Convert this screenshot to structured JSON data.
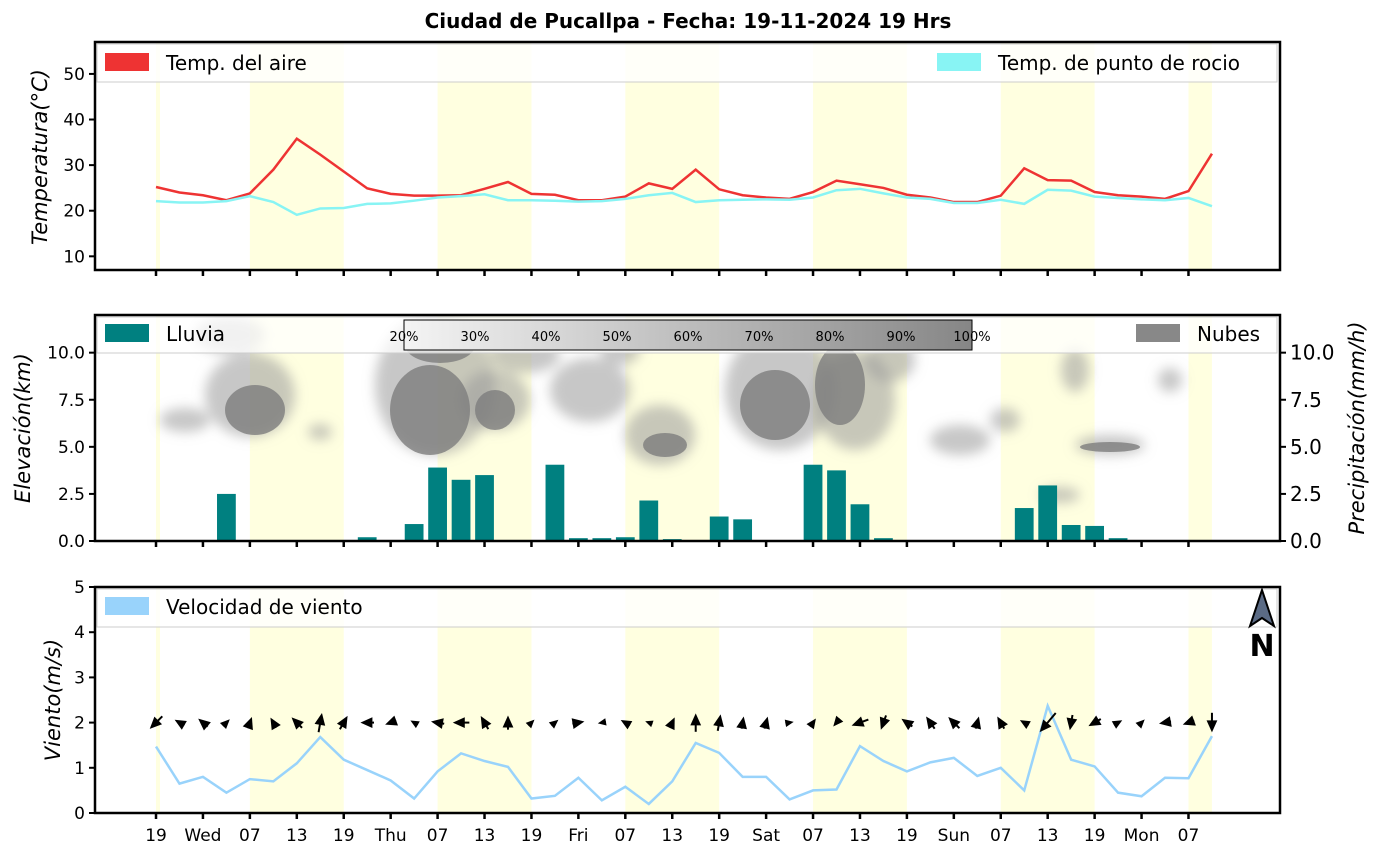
{
  "title": "Ciudad de Pucallpa   -   Fecha: 19-11-2024 19 Hrs",
  "colors": {
    "air_temp": "#ee3333",
    "dew_point": "#88f4f4",
    "rain": "#008080",
    "clouds": "#888888",
    "wind": "#99d3fb",
    "day_band": "#ffffe0"
  },
  "x_axis": {
    "ticks": [
      {
        "t": 0,
        "label": "19"
      },
      {
        "t": 2,
        "label": "Wed"
      },
      {
        "t": 4,
        "label": "07"
      },
      {
        "t": 6,
        "label": "13"
      },
      {
        "t": 8,
        "label": "19"
      },
      {
        "t": 10,
        "label": "Thu"
      },
      {
        "t": 12,
        "label": "07"
      },
      {
        "t": 14,
        "label": "13"
      },
      {
        "t": 16,
        "label": "19"
      },
      {
        "t": 18,
        "label": "Fri"
      },
      {
        "t": 20,
        "label": "07"
      },
      {
        "t": 22,
        "label": "13"
      },
      {
        "t": 24,
        "label": "19"
      },
      {
        "t": 26,
        "label": "Sat"
      },
      {
        "t": 28,
        "label": "07"
      },
      {
        "t": 30,
        "label": "13"
      },
      {
        "t": 32,
        "label": "19"
      },
      {
        "t": 34,
        "label": "Sun"
      },
      {
        "t": 36,
        "label": "07"
      },
      {
        "t": 38,
        "label": "13"
      },
      {
        "t": 40,
        "label": "19"
      },
      {
        "t": 42,
        "label": "Mon"
      },
      {
        "t": 44,
        "label": "07"
      }
    ],
    "day_bands": [
      [
        4,
        8
      ],
      [
        12,
        16
      ],
      [
        20,
        24
      ],
      [
        28,
        32
      ],
      [
        36,
        40
      ],
      [
        44,
        45
      ]
    ],
    "range": [
      -2.6,
      47.9
    ]
  },
  "chart_data": [
    {
      "type": "line",
      "name": "temperature",
      "ylabel": "Temperatura(°C)",
      "ylim": [
        7,
        57
      ],
      "yticks": [
        10,
        20,
        30,
        40,
        50
      ],
      "legend": [
        "Temp. del aire",
        "Temp. de punto de rocio"
      ],
      "x": [
        0,
        1,
        2,
        3,
        4,
        5,
        6,
        7,
        8,
        9,
        10,
        11,
        12,
        13,
        14,
        15,
        16,
        17,
        18,
        19,
        20,
        21,
        22,
        23,
        24,
        25,
        26,
        27,
        28,
        29,
        30,
        31,
        32,
        33,
        34,
        35,
        36,
        37,
        38,
        39,
        40,
        41,
        42,
        43,
        44,
        45
      ],
      "series": [
        {
          "name": "Temp. del aire",
          "values": [
            25.2,
            24.0,
            23.4,
            22.3,
            23.8,
            29.0,
            35.8,
            32.3,
            28.6,
            24.9,
            23.7,
            23.3,
            23.3,
            23.4,
            24.8,
            26.3,
            23.7,
            23.5,
            22.3,
            22.3,
            23.1,
            26.0,
            24.8,
            29.0,
            24.7,
            23.4,
            22.9,
            22.6,
            24.1,
            26.6,
            25.8,
            25.0,
            23.5,
            22.9,
            21.9,
            21.9,
            23.3,
            29.3,
            26.7,
            26.6,
            24.1,
            23.4,
            23.1,
            22.6,
            24.3,
            32.5
          ]
        },
        {
          "name": "Temp. de punto de rocio",
          "values": [
            22.1,
            21.8,
            21.8,
            22.1,
            23.2,
            21.9,
            19.1,
            20.5,
            20.6,
            21.5,
            21.6,
            22.2,
            22.9,
            23.2,
            23.6,
            22.3,
            22.3,
            22.2,
            22.0,
            22.1,
            22.6,
            23.4,
            23.9,
            21.9,
            22.3,
            22.4,
            22.5,
            22.4,
            22.9,
            24.5,
            24.8,
            23.8,
            22.9,
            22.6,
            21.7,
            21.7,
            22.4,
            21.5,
            24.6,
            24.4,
            23.1,
            22.8,
            22.5,
            22.3,
            22.8,
            21.0
          ]
        }
      ]
    },
    {
      "type": "bar",
      "name": "rain-clouds",
      "ylabel": "Elevación(km)",
      "ylabel_right": "Precipitación(mm/h)",
      "ylim": [
        0,
        12
      ],
      "yticks": [
        0.0,
        2.5,
        5.0,
        7.5,
        10.0
      ],
      "yticks_right": [
        0.0,
        2.5,
        5.0,
        7.5,
        10.0
      ],
      "legend": [
        "Lluvia",
        "Nubes"
      ],
      "colorbar": [
        "20%",
        "30%",
        "40%",
        "50%",
        "60%",
        "70%",
        "80%",
        "90%",
        "100%"
      ],
      "x": [
        0,
        1,
        2,
        3,
        4,
        5,
        6,
        7,
        8,
        9,
        10,
        11,
        12,
        13,
        14,
        15,
        16,
        17,
        18,
        19,
        20,
        21,
        22,
        23,
        24,
        25,
        26,
        27,
        28,
        29,
        30,
        31,
        32,
        33,
        34,
        35,
        36,
        37,
        38,
        39,
        40,
        41,
        42,
        43,
        44,
        45
      ],
      "values": [
        0.0,
        0.05,
        0.05,
        2.5,
        0.03,
        0.03,
        0.03,
        0.03,
        0.03,
        0.2,
        0.0,
        0.9,
        3.9,
        3.25,
        3.5,
        0.03,
        0.03,
        4.05,
        0.15,
        0.15,
        0.2,
        2.15,
        0.1,
        0.03,
        1.3,
        1.15,
        0.03,
        0.03,
        4.05,
        3.75,
        1.95,
        0.15,
        0.0,
        0.0,
        0.0,
        0.0,
        0.05,
        1.75,
        2.95,
        0.85,
        0.8,
        0.15,
        0.0,
        0.0,
        0.0,
        0.0
      ]
    },
    {
      "type": "line",
      "name": "wind",
      "ylabel": "Viento(m/s)",
      "ylim": [
        0,
        5
      ],
      "yticks": [
        0,
        1,
        2,
        3,
        4,
        5
      ],
      "legend": [
        "Velocidad de viento"
      ],
      "north_label": "N",
      "x": [
        0,
        1,
        2,
        3,
        4,
        5,
        6,
        7,
        8,
        9,
        10,
        11,
        12,
        13,
        14,
        15,
        16,
        17,
        18,
        19,
        20,
        21,
        22,
        23,
        24,
        25,
        26,
        27,
        28,
        29,
        30,
        31,
        32,
        33,
        34,
        35,
        36,
        37,
        38,
        39,
        40,
        41,
        42,
        43,
        44,
        45
      ],
      "values": [
        1.47,
        0.65,
        0.8,
        0.45,
        0.75,
        0.7,
        1.1,
        1.68,
        1.18,
        0.95,
        0.72,
        0.32,
        0.92,
        1.32,
        1.15,
        1.02,
        0.32,
        0.38,
        0.78,
        0.28,
        0.58,
        0.2,
        0.7,
        1.55,
        1.33,
        0.8,
        0.8,
        0.3,
        0.5,
        0.52,
        1.48,
        1.15,
        0.92,
        1.12,
        1.22,
        0.82,
        1.0,
        0.5,
        2.37,
        1.18,
        1.03,
        0.45,
        0.37,
        0.78,
        0.77,
        1.7
      ],
      "arrow_dir_deg": [
        225,
        300,
        310,
        45,
        20,
        330,
        315,
        10,
        30,
        270,
        250,
        300,
        280,
        270,
        330,
        0,
        45,
        50,
        80,
        260,
        300,
        290,
        25,
        0,
        10,
        10,
        15,
        80,
        35,
        220,
        250,
        200,
        305,
        325,
        315,
        15,
        330,
        300,
        220,
        190,
        240,
        60,
        45,
        260,
        250,
        180
      ]
    }
  ]
}
